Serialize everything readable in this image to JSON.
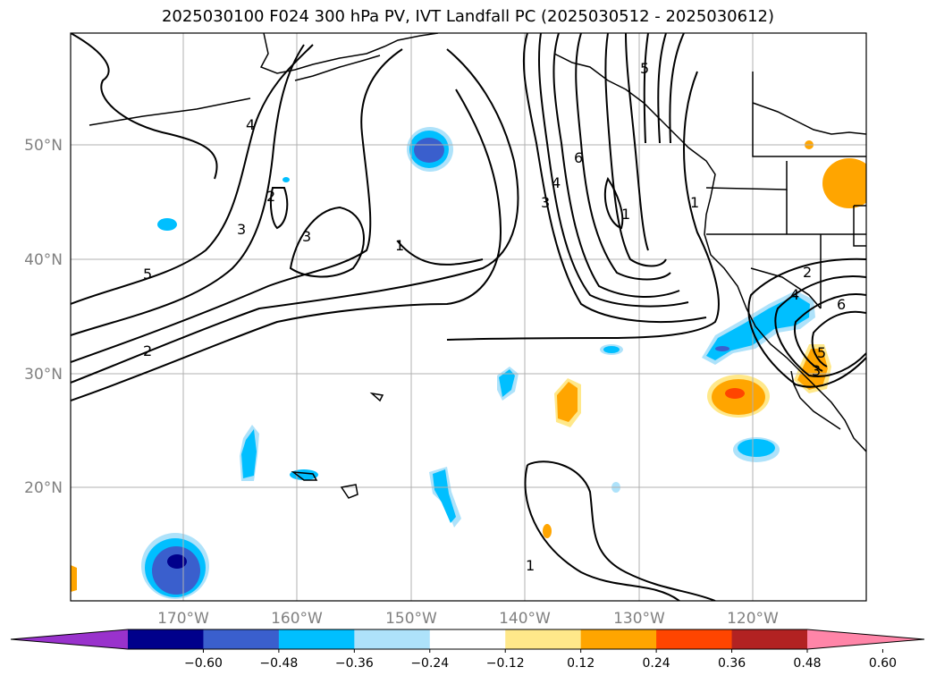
{
  "title": "2025030100 F024 300 hPa PV, IVT Landfall PC (2025030512 - 2025030612)",
  "latitude_labels": [
    "50°N",
    "40°N",
    "30°N",
    "20°N"
  ],
  "longitude_labels": [
    "170°W",
    "160°W",
    "150°W",
    "140°W",
    "130°W",
    "120°W"
  ],
  "colorbar": {
    "ticks": [
      "−0.60",
      "−0.48",
      "−0.36",
      "−0.24",
      "−0.12",
      "0.12",
      "0.24",
      "0.36",
      "0.48",
      "0.60"
    ],
    "colors": [
      "#9932cc",
      "#00008b",
      "#3a5fcd",
      "#00bfff",
      "#aee2fa",
      "#ffffff",
      "#ffe88a",
      "#ffa500",
      "#ff4500",
      "#b22222",
      "#ff85a8"
    ]
  },
  "pv_contour_labels": [
    "5",
    "4",
    "3",
    "2",
    "3",
    "2",
    "1",
    "6",
    "4",
    "3",
    "5",
    "1",
    "1",
    "2",
    "4",
    "6",
    "3",
    "5",
    "1"
  ],
  "colors": {
    "contour": "#000000",
    "grid": "#b0b0b0",
    "coast": "#000000"
  }
}
